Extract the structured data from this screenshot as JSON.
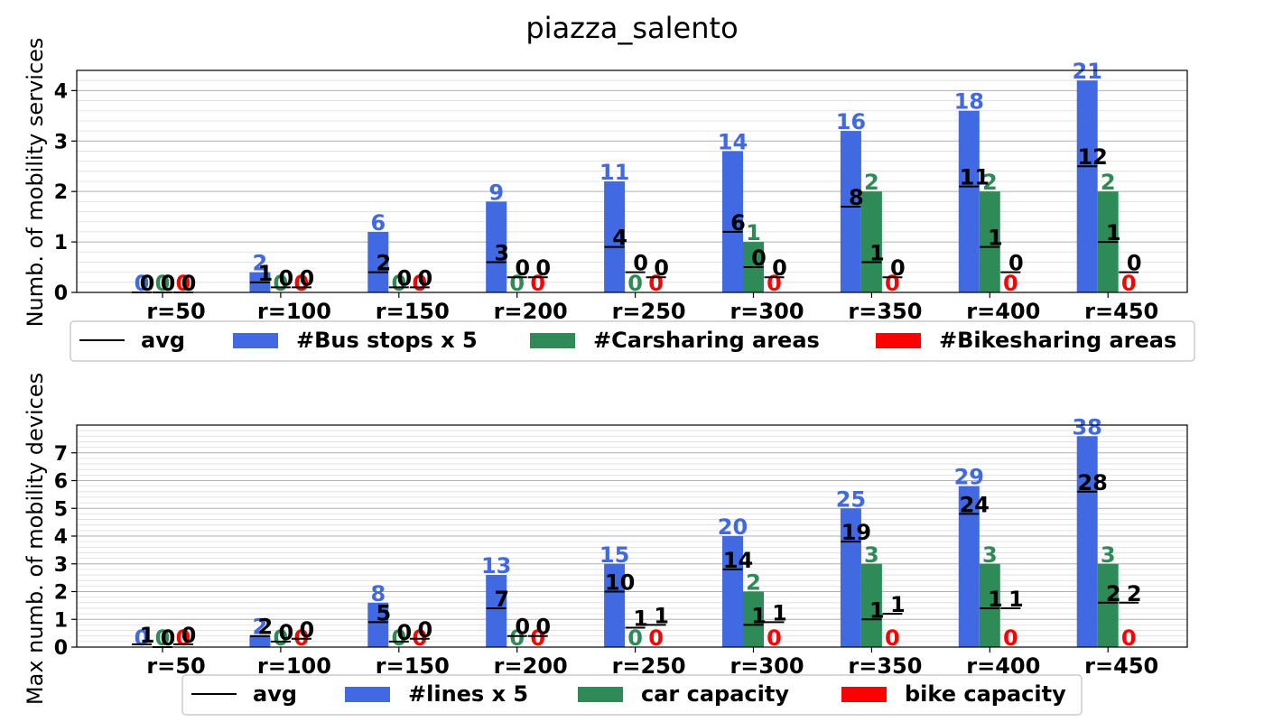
{
  "title": "piazza_salento",
  "colors": {
    "bus": "#4169e1",
    "car": "#2e8b57",
    "bike": "#ff0000",
    "avg": "#000000"
  },
  "chart_data": [
    {
      "type": "bar",
      "ylabel": "Numb. of mobility services",
      "ylim": [
        0,
        4.4
      ],
      "yticks": [
        0,
        1,
        2,
        3,
        4
      ],
      "grid": true,
      "categories": [
        "r=50",
        "r=100",
        "r=150",
        "r=200",
        "r=250",
        "r=300",
        "r=350",
        "r=400",
        "r=450"
      ],
      "series": [
        {
          "name": "#Bus stops x 5",
          "color_key": "bus",
          "values": [
            0,
            0.4,
            1.2,
            1.8,
            2.2,
            2.8,
            3.2,
            3.6,
            4.2
          ],
          "labels": [
            "0",
            "2",
            "6",
            "9",
            "11",
            "14",
            "16",
            "18",
            "21"
          ]
        },
        {
          "name": "#Carsharing areas",
          "color_key": "car",
          "values": [
            0,
            0,
            0,
            0,
            0,
            1,
            2,
            2,
            2
          ],
          "labels": [
            "0",
            "0",
            "0",
            "0",
            "0",
            "1",
            "2",
            "2",
            "2"
          ]
        },
        {
          "name": "#Bikesharing areas",
          "color_key": "bike",
          "values": [
            0,
            0,
            0,
            0,
            0,
            0,
            0,
            0,
            0
          ],
          "labels": [
            "0",
            "0",
            "0",
            "0",
            "0",
            "0",
            "0",
            "0",
            "0"
          ]
        }
      ],
      "avg": {
        "name": "avg",
        "series": [
          {
            "values": [
              0,
              0.2,
              0.4,
              0.6,
              0.9,
              1.2,
              1.7,
              2.1,
              2.5
            ],
            "labels": [
              "0",
              "1",
              "2",
              "3",
              "4",
              "6",
              "8",
              "11",
              "12"
            ]
          },
          {
            "values": [
              0,
              0.1,
              0.1,
              0.3,
              0.4,
              0.5,
              0.6,
              0.9,
              1.0
            ],
            "labels": [
              "0",
              "0",
              "0",
              "0",
              "0",
              "0",
              "1",
              "1",
              "1"
            ]
          },
          {
            "values": [
              0,
              0.1,
              0.1,
              0.3,
              0.3,
              0.3,
              0.3,
              0.4,
              0.4
            ],
            "labels": [
              "0",
              "0",
              "0",
              "0",
              "0",
              "0",
              "0",
              "0",
              "0"
            ]
          }
        ]
      },
      "legend": [
        "avg",
        "#Bus stops x 5",
        "#Carsharing areas",
        "#Bikesharing areas"
      ],
      "legend_position": "below"
    },
    {
      "type": "bar",
      "ylabel": "Max numb. of mobility devices",
      "ylim": [
        0,
        8
      ],
      "yticks": [
        0,
        1,
        2,
        3,
        4,
        5,
        6,
        7
      ],
      "grid": true,
      "categories": [
        "r=50",
        "r=100",
        "r=150",
        "r=200",
        "r=250",
        "r=300",
        "r=350",
        "r=400",
        "r=450"
      ],
      "series": [
        {
          "name": "#lines x 5",
          "color_key": "bus",
          "values": [
            0,
            0.4,
            1.6,
            2.6,
            3.0,
            4.0,
            5.0,
            5.8,
            7.6
          ],
          "labels": [
            "0",
            "2",
            "8",
            "13",
            "15",
            "20",
            "25",
            "29",
            "38"
          ]
        },
        {
          "name": "car capacity",
          "color_key": "car",
          "values": [
            0,
            0,
            0,
            0,
            0,
            2,
            3,
            3,
            3
          ],
          "labels": [
            "0",
            "0",
            "0",
            "0",
            "0",
            "2",
            "3",
            "3",
            "3"
          ]
        },
        {
          "name": "bike capacity",
          "color_key": "bike",
          "values": [
            0,
            0,
            0,
            0,
            0,
            0,
            0,
            0,
            0
          ],
          "labels": [
            "0",
            "0",
            "0",
            "0",
            "0",
            "0",
            "0",
            "0",
            "0"
          ]
        }
      ],
      "avg": {
        "name": "avg",
        "series": [
          {
            "values": [
              0.1,
              0.4,
              0.9,
              1.4,
              2.0,
              2.8,
              3.8,
              4.8,
              5.6
            ],
            "labels": [
              "1",
              "2",
              "5",
              "7",
              "10",
              "14",
              "19",
              "24",
              "28"
            ]
          },
          {
            "values": [
              0,
              0.2,
              0.2,
              0.4,
              0.7,
              0.8,
              1.0,
              1.4,
              1.6
            ],
            "labels": [
              "0",
              "0",
              "0",
              "0",
              "1",
              "1",
              "1",
              "1",
              "2"
            ]
          },
          {
            "values": [
              0.1,
              0.3,
              0.3,
              0.4,
              0.8,
              0.9,
              1.2,
              1.4,
              1.6
            ],
            "labels": [
              "0",
              "0",
              "0",
              "0",
              "1",
              "1",
              "1",
              "1",
              "2"
            ]
          }
        ]
      },
      "legend": [
        "avg",
        "#lines x 5",
        "car capacity",
        "bike capacity"
      ],
      "legend_position": "below"
    }
  ]
}
